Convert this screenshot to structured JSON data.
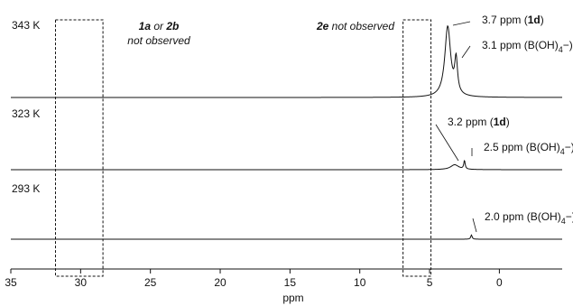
{
  "chart_data": {
    "type": "line",
    "title": "",
    "xlabel": "ppm",
    "ylabel": "",
    "xlim": [
      35,
      -4.5
    ],
    "x_reversed": true,
    "grid": false,
    "x_ticks": [
      35,
      30,
      25,
      20,
      15,
      10,
      5,
      0
    ],
    "series": [
      {
        "name": "343 K",
        "baseline": 0,
        "peaks": [
          {
            "x": 3.7,
            "height": 1.0,
            "width": 0.25
          },
          {
            "x": 3.1,
            "height": 0.48,
            "width": 0.12
          }
        ]
      },
      {
        "name": "323 K",
        "baseline": 0,
        "peaks": [
          {
            "x": 3.2,
            "height": 0.07,
            "width": 0.35
          },
          {
            "x": 2.5,
            "height": 0.12,
            "width": 0.06
          }
        ]
      },
      {
        "name": "293 K",
        "baseline": 0,
        "peaks": [
          {
            "x": 2.0,
            "height": 0.06,
            "width": 0.06
          }
        ]
      }
    ],
    "annotations": [
      {
        "series": 0,
        "x": 3.7,
        "parts": [
          {
            "t": "3.7 ppm ("
          },
          {
            "t": "1d",
            "b": true
          },
          {
            "t": ")"
          }
        ]
      },
      {
        "series": 0,
        "x": 3.1,
        "parts": [
          {
            "t": "3.1 ppm (B(OH)"
          },
          {
            "t": "4",
            "sub": true
          },
          {
            "t": "−)"
          }
        ]
      },
      {
        "series": 1,
        "x": 3.2,
        "parts": [
          {
            "t": "3.2 ppm ("
          },
          {
            "t": "1d",
            "b": true
          },
          {
            "t": ")"
          }
        ]
      },
      {
        "series": 1,
        "x": 2.5,
        "parts": [
          {
            "t": "2.5 ppm (B(OH)"
          },
          {
            "t": "4",
            "sub": true
          },
          {
            "t": "−)"
          }
        ]
      },
      {
        "series": 2,
        "x": 2.0,
        "parts": [
          {
            "t": "2.0 ppm (B(OH)"
          },
          {
            "t": "4",
            "sub": true
          },
          {
            "t": "−)"
          }
        ]
      }
    ],
    "regions": [
      {
        "x_range": [
          31.8,
          28.4
        ],
        "label_lines": [
          [
            {
              "t": "1a",
              "b": true
            },
            {
              "t": " or "
            },
            {
              "t": "2b",
              "b": true
            }
          ],
          [
            {
              "t": "not observed"
            }
          ]
        ]
      },
      {
        "x_range": [
          6.9,
          4.9
        ],
        "label_lines": [
          [
            {
              "t": "2e",
              "b": true
            },
            {
              "t": " not observed"
            }
          ]
        ]
      }
    ]
  }
}
